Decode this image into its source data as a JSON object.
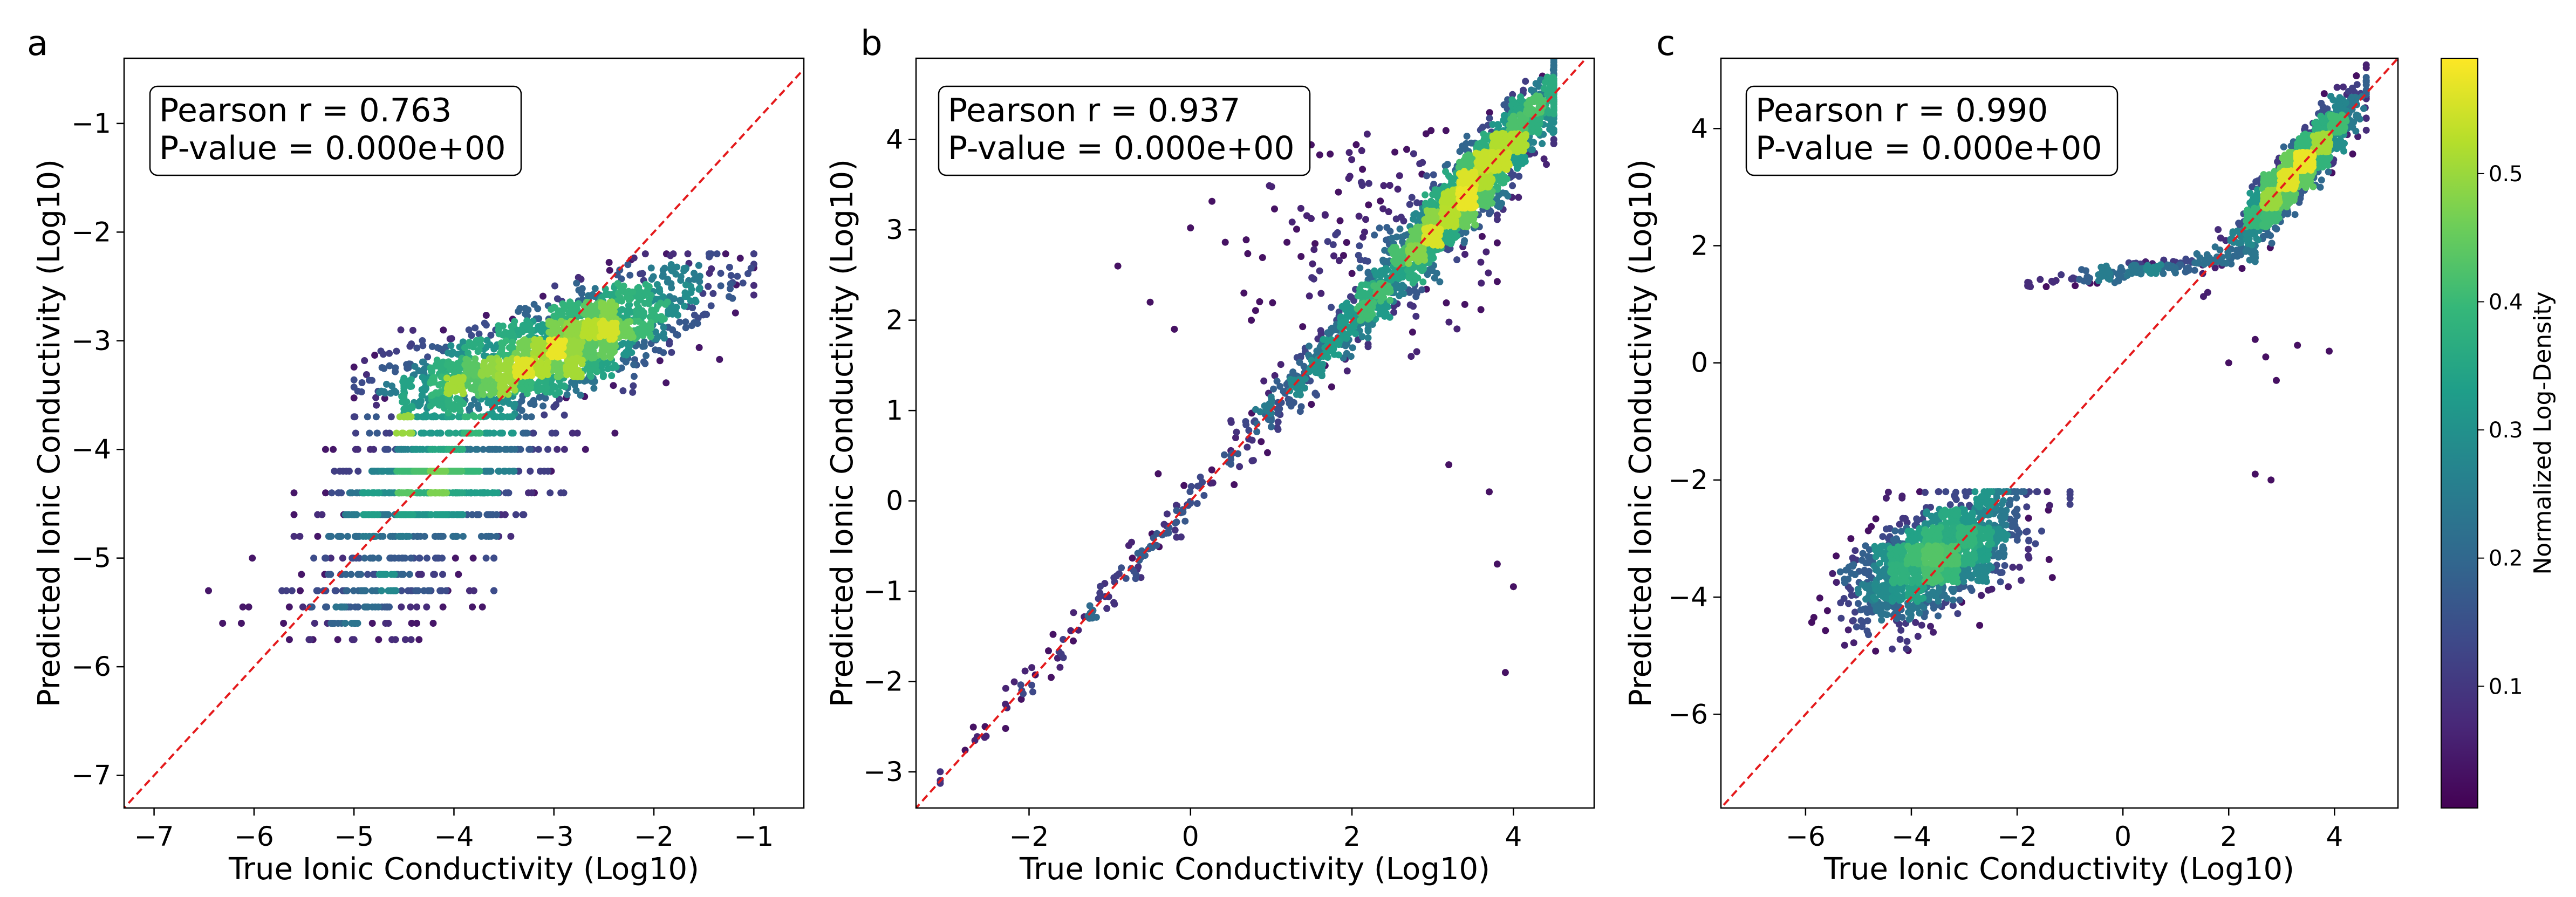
{
  "colors": {
    "diagonal": "#e41a1c",
    "frame": "#000000",
    "colormap": "viridis",
    "colormap_stops": [
      "#440154",
      "#482878",
      "#3e4989",
      "#31688e",
      "#26828e",
      "#1f9e89",
      "#35b779",
      "#6ece58",
      "#b5de2b",
      "#fde725"
    ]
  },
  "colorbar": {
    "label": "Normalized Log-Density",
    "ticks": [
      "0.1",
      "0.2",
      "0.3",
      "0.4",
      "0.5"
    ],
    "tick_values": [
      0.1,
      0.2,
      0.3,
      0.4,
      0.5
    ],
    "range": [
      0.005,
      0.59
    ]
  },
  "chart_data": [
    {
      "panel": "a",
      "type": "scatter",
      "title": "",
      "xlabel": "True Ionic Conductivity (Log10)",
      "ylabel": "Predicted Ionic Conductivity (Log10)",
      "xlim": [
        -7.3,
        -0.5
      ],
      "ylim": [
        -7.3,
        -0.4
      ],
      "xticks": [
        -7,
        -6,
        -5,
        -4,
        -3,
        -2,
        -1
      ],
      "yticks": [
        -7,
        -6,
        -5,
        -4,
        -3,
        -2,
        -1
      ],
      "stats": {
        "pearson": "Pearson r = 0.763",
        "pvalue": "P-value = 0.000e+00"
      },
      "legend_position": "top-left",
      "colored_by": "normalized log-density",
      "reference_line": "y = x (dashed red)",
      "point_groups": [
        {
          "x_center": -2.9,
          "y_center": -3.05,
          "x_spread": 0.75,
          "y_spread": 0.35,
          "x_range": [
            -4.5,
            -1.0
          ],
          "y_range": [
            -3.7,
            -2.2
          ],
          "corr": 0.75,
          "count": 1500
        },
        {
          "x_center": -3.9,
          "y_center": -3.3,
          "x_spread": 0.55,
          "y_spread": 0.2,
          "x_range": [
            -5.0,
            -2.5
          ],
          "y_range": [
            -3.7,
            -2.9
          ],
          "corr": 0.3,
          "count": 300
        },
        {
          "x_center": -4.2,
          "y_center": -4.3,
          "x_spread": 0.5,
          "y_spread": 0.3,
          "x_range": [
            -5.6,
            -2.3
          ],
          "y_range": [
            -4.8,
            -3.8
          ],
          "corr": 0.3,
          "count": 700,
          "y_steps": [
            -3.85,
            -4.0,
            -4.2,
            -4.4,
            -4.6,
            -4.8
          ]
        },
        {
          "x_center": -4.8,
          "y_center": -5.3,
          "x_spread": 0.6,
          "y_spread": 0.25,
          "x_range": [
            -6.6,
            -3.6
          ],
          "y_range": [
            -5.75,
            -5.0
          ],
          "corr": 0.3,
          "count": 220,
          "y_steps": [
            -5.0,
            -5.15,
            -5.3,
            -5.45,
            -5.6,
            -5.75
          ]
        }
      ]
    },
    {
      "panel": "b",
      "type": "scatter",
      "title": "",
      "xlabel": "True Ionic Conductivity (Log10)",
      "ylabel": "Predicted Ionic Conductivity (Log10)",
      "xlim": [
        -3.4,
        5.0
      ],
      "ylim": [
        -3.4,
        4.9
      ],
      "xticks": [
        -2,
        0,
        2,
        4
      ],
      "yticks": [
        -3,
        -2,
        -1,
        0,
        1,
        2,
        3,
        4
      ],
      "stats": {
        "pearson": "Pearson r = 0.937",
        "pvalue": "P-value = 0.000e+00"
      },
      "legend_position": "top-left",
      "colored_by": "normalized log-density",
      "reference_line": "y = x (dashed red)",
      "point_groups": [
        {
          "along_line": true,
          "x_range": [
            2.2,
            4.5
          ],
          "x_center": 3.5,
          "x_spread": 0.55,
          "offset_spread": 0.2,
          "count": 1800
        },
        {
          "along_line": true,
          "x_range": [
            0.5,
            3.0
          ],
          "x_center": 2.0,
          "x_spread": 0.6,
          "offset_spread": 0.18,
          "count": 450
        },
        {
          "along_line": true,
          "x_range": [
            -3.1,
            1.0
          ],
          "x_center": -0.7,
          "x_spread": 1.1,
          "offset_spread": 0.12,
          "count": 140
        },
        {
          "x_center": 2.2,
          "y_center": 3.0,
          "x_spread": 0.8,
          "y_spread": 0.6,
          "x_range": [
            0.0,
            3.8
          ],
          "y_range": [
            1.6,
            4.1
          ],
          "corr": 0.0,
          "count": 160
        }
      ],
      "outliers": [
        [
          3.2,
          0.4
        ],
        [
          3.7,
          0.1
        ],
        [
          3.8,
          -0.7
        ],
        [
          4.0,
          -0.95
        ],
        [
          3.9,
          -1.9
        ],
        [
          -0.2,
          1.9
        ],
        [
          -0.3,
          3.7
        ],
        [
          -0.9,
          2.6
        ],
        [
          -0.5,
          2.2
        ],
        [
          -0.4,
          0.3
        ],
        [
          0.1,
          3.9
        ]
      ]
    },
    {
      "panel": "c",
      "type": "scatter",
      "title": "",
      "xlabel": "True Ionic Conductivity (Log10)",
      "ylabel": "Predicted Ionic Conductivity (Log10)",
      "xlim": [
        -7.6,
        5.2
      ],
      "ylim": [
        -7.6,
        5.2
      ],
      "xticks": [
        -6,
        -4,
        -2,
        0,
        2,
        4
      ],
      "yticks": [
        -6,
        -4,
        -2,
        0,
        2,
        4
      ],
      "stats": {
        "pearson": "Pearson r = 0.990",
        "pvalue": "P-value = 0.000e+00"
      },
      "legend_position": "top-left",
      "colored_by": "normalized log-density",
      "reference_line": "y = x (dashed red)",
      "point_groups": [
        {
          "x_center": -3.5,
          "y_center": -3.3,
          "x_spread": 0.8,
          "y_spread": 0.55,
          "x_range": [
            -6.9,
            -1.0
          ],
          "y_range": [
            -6.0,
            -2.2
          ],
          "corr": 0.6,
          "count": 1400
        },
        {
          "along_line": true,
          "x_range": [
            1.5,
            4.6
          ],
          "x_center": 3.3,
          "x_spread": 0.55,
          "offset_spread": 0.25,
          "count": 1300
        },
        {
          "x_center": 0.5,
          "y_center": 1.6,
          "x_spread": 1.2,
          "y_spread": 0.15,
          "x_range": [
            -1.8,
            2.5
          ],
          "y_range": [
            1.3,
            2.0
          ],
          "corr": 0.9,
          "count": 180
        }
      ],
      "outliers": [
        [
          -3.0,
          3.6
        ],
        [
          -2.8,
          3.9
        ],
        [
          2.5,
          0.4
        ],
        [
          2.7,
          0.1
        ],
        [
          2.9,
          -0.3
        ],
        [
          3.3,
          0.3
        ],
        [
          3.9,
          0.2
        ],
        [
          2.0,
          0.0
        ],
        [
          2.5,
          -1.9
        ],
        [
          2.8,
          -2.0
        ]
      ]
    }
  ]
}
